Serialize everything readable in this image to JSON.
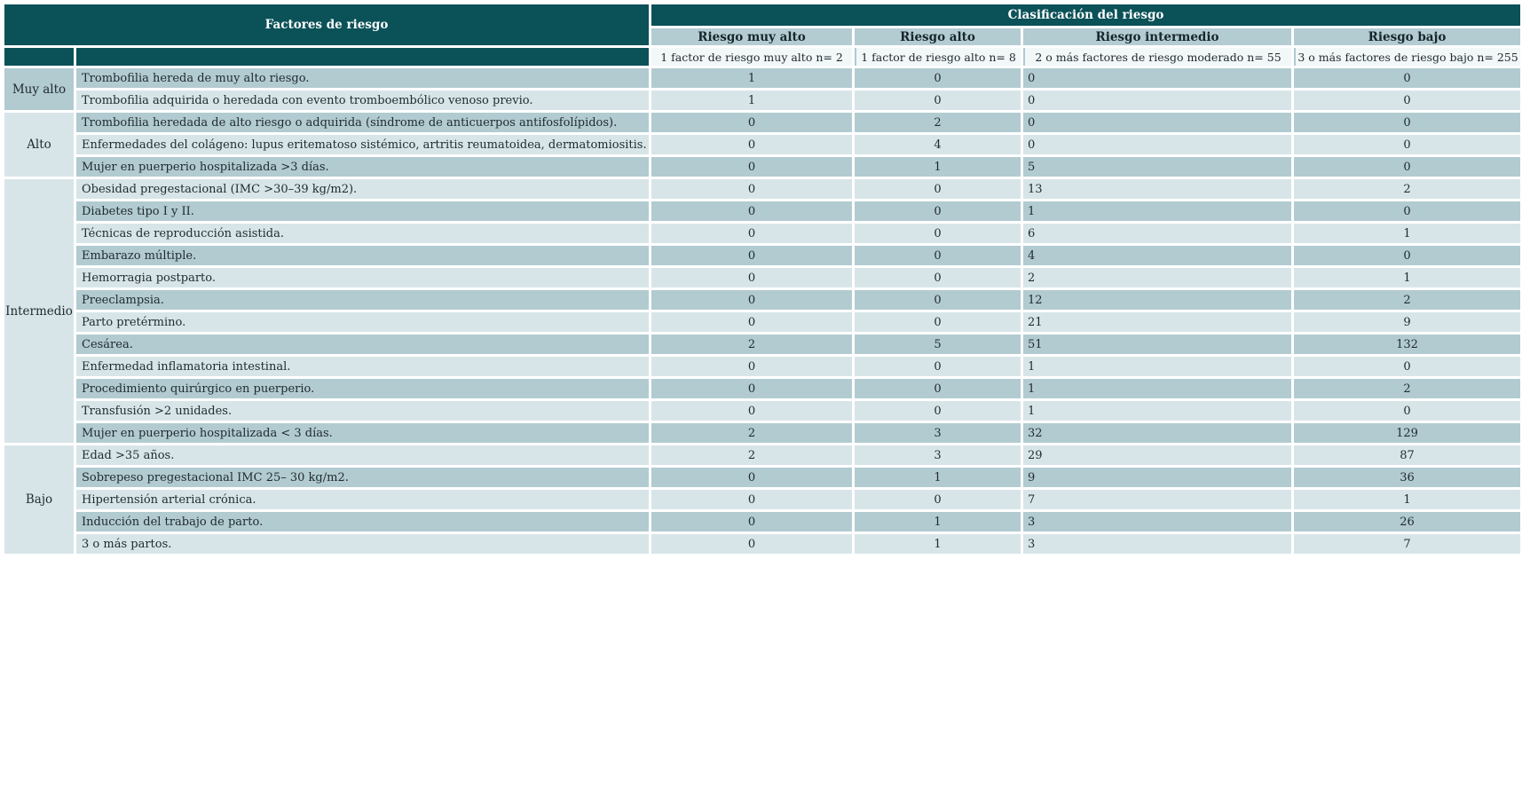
{
  "table": {
    "header": {
      "factores_label": "Factores de riesgo",
      "clasificacion_label": "Clasificación del riesgo",
      "risk_columns": [
        {
          "label": "Riesgo muy alto",
          "sublabel": "1 factor de riesgo muy alto n= 2"
        },
        {
          "label": "Riesgo alto",
          "sublabel": "1 factor de riesgo alto n= 8"
        },
        {
          "label": "Riesgo intermedio",
          "sublabel": "2 o más factores de riesgo moderado n= 55"
        },
        {
          "label": "Riesgo bajo",
          "sublabel": "3 o más factores de riesgo bajo n= 255"
        }
      ]
    },
    "groups": [
      {
        "category": "Muy alto",
        "shade": "dark",
        "rows": [
          {
            "factor": "Trombofilia hereda de muy alto riesgo.",
            "values": [
              1,
              0,
              0,
              0
            ]
          },
          {
            "factor": "Trombofilia adquirida o heredada con evento tromboembólico venoso previo.",
            "values": [
              1,
              0,
              0,
              0
            ]
          }
        ]
      },
      {
        "category": "Alto",
        "shade": "light",
        "rows": [
          {
            "factor": "Trombofilia heredada de alto riesgo o adquirida (síndrome de anticuerpos antifosfolípidos).",
            "values": [
              0,
              2,
              0,
              0
            ]
          },
          {
            "factor": "Enfermedades del colágeno: lupus eritematoso sistémico, artritis reumatoidea, dermatomiositis.",
            "values": [
              0,
              4,
              0,
              0
            ]
          },
          {
            "factor": "Mujer en puerperio hospitalizada >3 días.",
            "values": [
              0,
              1,
              5,
              0
            ]
          }
        ]
      },
      {
        "category": "Intermedio",
        "shade": "light",
        "rows": [
          {
            "factor": "Obesidad pregestacional (IMC >30–39 kg/m2).",
            "values": [
              0,
              0,
              13,
              2
            ]
          },
          {
            "factor": "Diabetes tipo I y II.",
            "values": [
              0,
              0,
              1,
              0
            ]
          },
          {
            "factor": "Técnicas de reproducción asistida.",
            "values": [
              0,
              0,
              6,
              1
            ]
          },
          {
            "factor": "Embarazo múltiple.",
            "values": [
              0,
              0,
              4,
              0
            ]
          },
          {
            "factor": "Hemorragia postparto.",
            "values": [
              0,
              0,
              2,
              1
            ]
          },
          {
            "factor": "Preeclampsia.",
            "values": [
              0,
              0,
              12,
              2
            ]
          },
          {
            "factor": "Parto pretérmino.",
            "values": [
              0,
              0,
              21,
              9
            ]
          },
          {
            "factor": "Cesárea.",
            "values": [
              2,
              5,
              51,
              132
            ]
          },
          {
            "factor": "Enfermedad inflamatoria intestinal.",
            "values": [
              0,
              0,
              1,
              0
            ]
          },
          {
            "factor": "Procedimiento quirúrgico en puerperio.",
            "values": [
              0,
              0,
              1,
              2
            ]
          },
          {
            "factor": "Transfusión >2 unidades.",
            "values": [
              0,
              0,
              1,
              0
            ]
          },
          {
            "factor": "Mujer en puerperio hospitalizada < 3 días.",
            "values": [
              2,
              3,
              32,
              129
            ]
          }
        ]
      },
      {
        "category": "Bajo",
        "shade": "light",
        "rows": [
          {
            "factor": "Edad >35 años.",
            "values": [
              2,
              3,
              29,
              87
            ]
          },
          {
            "factor": "Sobrepeso pregestacional IMC 25– 30 kg/m2.",
            "values": [
              0,
              1,
              9,
              36
            ]
          },
          {
            "factor": "Hipertensión arterial crónica.",
            "values": [
              0,
              0,
              7,
              1
            ]
          },
          {
            "factor": "Inducción del trabajo de parto.",
            "values": [
              0,
              1,
              3,
              26
            ]
          },
          {
            "factor": "3 o más partos.",
            "values": [
              0,
              1,
              3,
              7
            ]
          }
        ]
      }
    ],
    "colors": {
      "header_teal": "#0B5158",
      "stripe_dark": "#B2CBD1",
      "stripe_light": "#D8E5E8",
      "risk_level_header_bg": "#B3CCD2",
      "criteria_header_bg": "#F2F7F8",
      "separator_line": "#AECBD1",
      "text": "#1E2A2E"
    }
  }
}
